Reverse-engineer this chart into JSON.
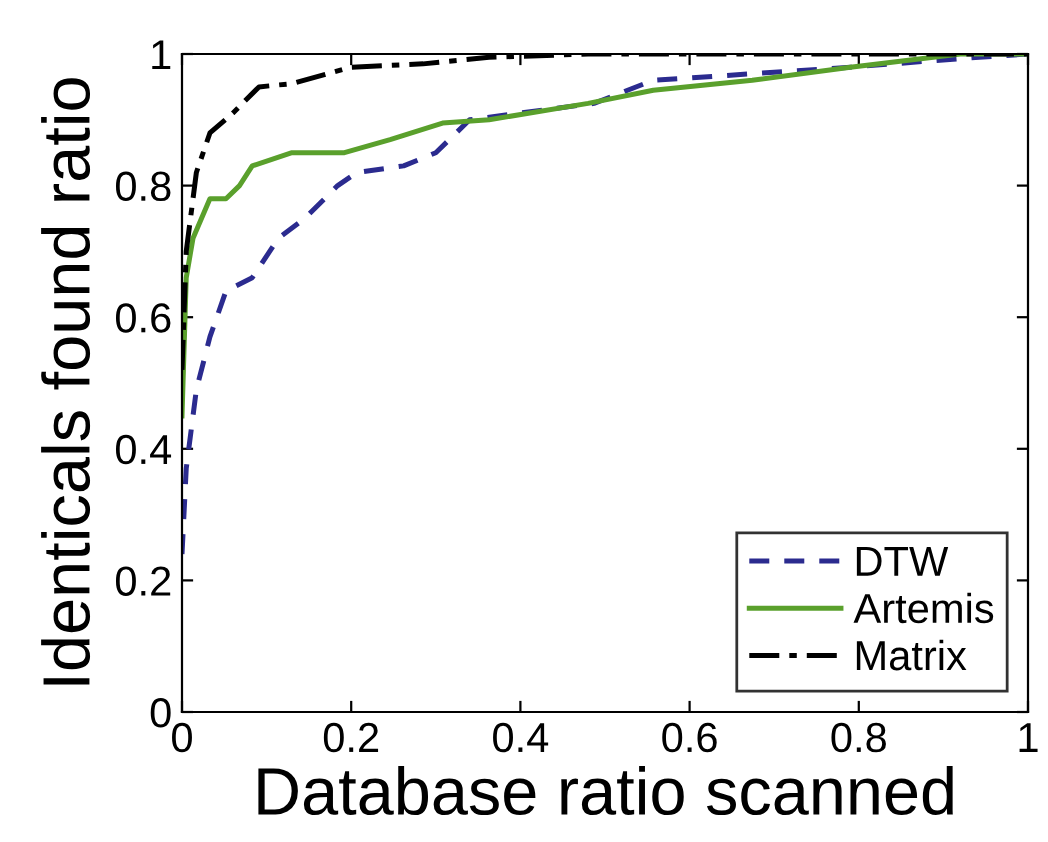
{
  "chart_data": {
    "type": "line",
    "xlabel": "Database ratio scanned",
    "ylabel": "Identicals found ratio",
    "xlim": [
      0,
      1
    ],
    "ylim": [
      0,
      1
    ],
    "xticks": [
      0,
      0.2,
      0.4,
      0.6,
      0.8,
      1
    ],
    "yticks": [
      0,
      0.2,
      0.4,
      0.6,
      0.8,
      1
    ],
    "grid": false,
    "legend": "bottom right",
    "series": [
      {
        "name": "DTW",
        "color": "#2b2b8f",
        "line_style": "dashed",
        "x": [
          0,
          0.005,
          0.017,
          0.033,
          0.052,
          0.083,
          0.114,
          0.145,
          0.184,
          0.207,
          0.262,
          0.3,
          0.34,
          0.487,
          0.557,
          0.674,
          0.79,
          0.92,
          1.0
        ],
        "values": [
          0.24,
          0.37,
          0.49,
          0.57,
          0.64,
          0.66,
          0.72,
          0.75,
          0.8,
          0.82,
          0.83,
          0.85,
          0.9,
          0.925,
          0.96,
          0.97,
          0.98,
          0.993,
          1.0
        ]
      },
      {
        "name": "Artemis",
        "color": "#5aa02c",
        "line_style": "solid",
        "x": [
          0,
          0.005,
          0.013,
          0.033,
          0.052,
          0.068,
          0.083,
          0.13,
          0.192,
          0.246,
          0.308,
          0.363,
          0.48,
          0.557,
          0.674,
          0.79,
          0.92,
          1.0
        ],
        "values": [
          0.45,
          0.66,
          0.72,
          0.78,
          0.78,
          0.8,
          0.83,
          0.85,
          0.85,
          0.87,
          0.895,
          0.9,
          0.925,
          0.945,
          0.96,
          0.98,
          1.0,
          1.0
        ]
      },
      {
        "name": "Matrix",
        "color": "#000000",
        "line_style": "dashdot",
        "x": [
          0,
          0.005,
          0.017,
          0.033,
          0.06,
          0.091,
          0.13,
          0.2,
          0.285,
          0.363,
          0.48,
          1.0
        ],
        "values": [
          0.52,
          0.7,
          0.82,
          0.88,
          0.91,
          0.95,
          0.955,
          0.98,
          0.985,
          0.995,
          1.0,
          1.0
        ]
      }
    ]
  }
}
